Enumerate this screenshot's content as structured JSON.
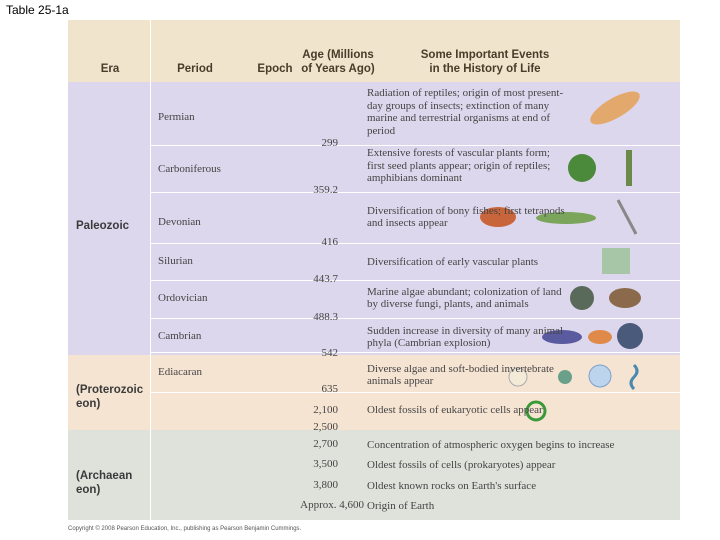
{
  "header": {
    "title": "Table 25-1a"
  },
  "table": {
    "columns": [
      "Era",
      "Period",
      "Epoch",
      "Age (Millions of Years Ago)",
      "Some Important Events in the History of Life"
    ],
    "eras": [
      "Paleozoic",
      "(Proterozoic eon)",
      "(Archaean eon)"
    ],
    "periods": [
      "Permian",
      "Carboniferous",
      "Devonian",
      "Silurian",
      "Ordovician",
      "Cambrian",
      "Ediacaran"
    ],
    "ages": [
      "299",
      "359.2",
      "416",
      "443.7",
      "488.3",
      "542",
      "635",
      "2,100",
      "2,500",
      "2,700",
      "3,500",
      "3,800",
      "Approx. 4,600"
    ],
    "events": [
      "Radiation of reptiles; origin of most present-day groups of insects; extinction of many marine and terrestrial organisms at end of period",
      "Extensive forests of vascular plants form; first seed plants appear; origin of reptiles; amphibians dominant",
      "Diversification of bony fishes; first tetrapods and insects appear",
      "Diversification of early vascular plants",
      "Marine algae abundant; colonization of land by diverse fungi, plants, and animals",
      "Sudden increase in diversity of many animal phyla (Cambrian explosion)",
      "Diverse algae and soft-bodied invertebrate animals appear",
      "Oldest fossils of eukaryotic cells appear",
      "Concentration of atmospheric oxygen begins to increase",
      "Oldest fossils of cells (prokaryotes) appear",
      "Oldest known rocks on Earth's surface",
      "Origin of Earth"
    ]
  },
  "footer": {
    "copyright": "Copyright © 2008 Pearson Education, Inc., publishing as Pearson Benjamin Cummings."
  }
}
